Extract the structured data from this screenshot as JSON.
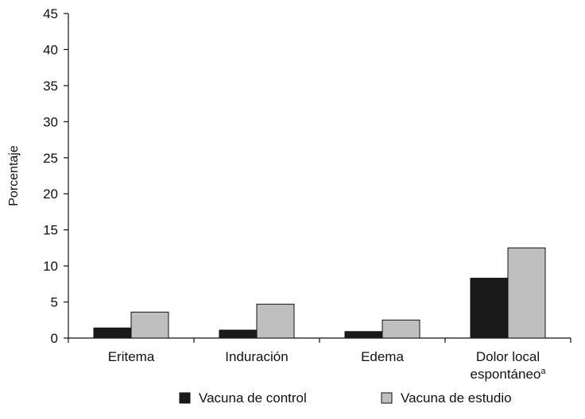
{
  "chart_data": {
    "type": "bar",
    "title": "",
    "xlabel": "",
    "ylabel": "Porcentaje",
    "ylim": [
      0,
      45
    ],
    "yticks": [
      0,
      5,
      10,
      15,
      20,
      25,
      30,
      35,
      40,
      45
    ],
    "grid": false,
    "legend_position": "bottom",
    "categories": [
      {
        "lines": [
          "Eritema"
        ],
        "superscript": ""
      },
      {
        "lines": [
          "Induración"
        ],
        "superscript": ""
      },
      {
        "lines": [
          "Edema"
        ],
        "superscript": ""
      },
      {
        "lines": [
          "Dolor local",
          "espontáneo"
        ],
        "superscript": "a"
      }
    ],
    "series": [
      {
        "name": "Vacuna de control",
        "color": "#1a1a1a",
        "values": [
          1.4,
          1.1,
          0.9,
          8.3
        ]
      },
      {
        "name": "Vacuna de estudio",
        "color": "#bfbfbf",
        "values": [
          3.6,
          4.7,
          2.5,
          12.5
        ]
      }
    ]
  }
}
